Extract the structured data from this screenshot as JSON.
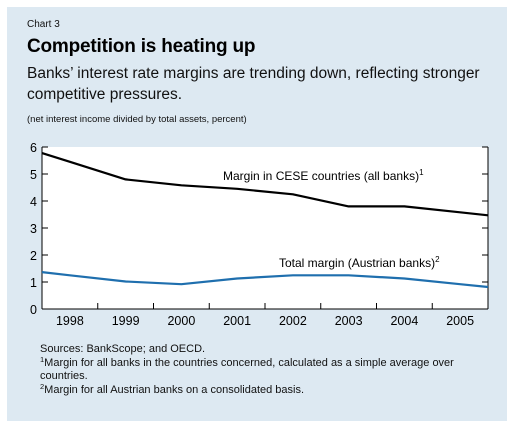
{
  "header": {
    "chart_label": "Chart 3",
    "title": "Competition is heating up",
    "subtitle": "Banks’ interest rate margins are trending down, reflecting stronger competitive pressures.",
    "units": "(net interest income divided by total assets, percent)"
  },
  "colors": {
    "panel_background": "#dde9f2",
    "plot_background": "#ffffff",
    "series_cese": "#000000",
    "series_austria": "#1f6fae"
  },
  "chart_data": {
    "type": "line",
    "categories": [
      "1998",
      "1999",
      "2000",
      "2001",
      "2002",
      "2003",
      "2004",
      "2005"
    ],
    "x_tick_labels": [
      "1998",
      "1999",
      "2000",
      "2001",
      "2002",
      "2003",
      "2004",
      "2005"
    ],
    "y_tick_labels": [
      "0",
      "1",
      "2",
      "3",
      "4",
      "5",
      "6"
    ],
    "ylim": [
      0,
      6
    ],
    "grid": false,
    "xlabel": "",
    "ylabel": "",
    "series": [
      {
        "name": "Margin in CESE countries (all banks)",
        "footnote": "1",
        "values": [
          5.45,
          4.8,
          4.58,
          4.45,
          4.25,
          3.8,
          3.8,
          3.58
        ]
      },
      {
        "name": "Total margin (Austrian banks)",
        "footnote": "2",
        "values": [
          1.25,
          1.02,
          0.92,
          1.13,
          1.25,
          1.25,
          1.13,
          0.92
        ]
      }
    ]
  },
  "notes": {
    "sources": "Sources: BankScope; and OECD.",
    "footnote1_mark": "1",
    "footnote1_text": "Margin for all banks in the countries concerned, calculated as a simple average over countries.",
    "footnote2_mark": "2",
    "footnote2_text": "Margin for all Austrian banks on a consolidated basis."
  }
}
